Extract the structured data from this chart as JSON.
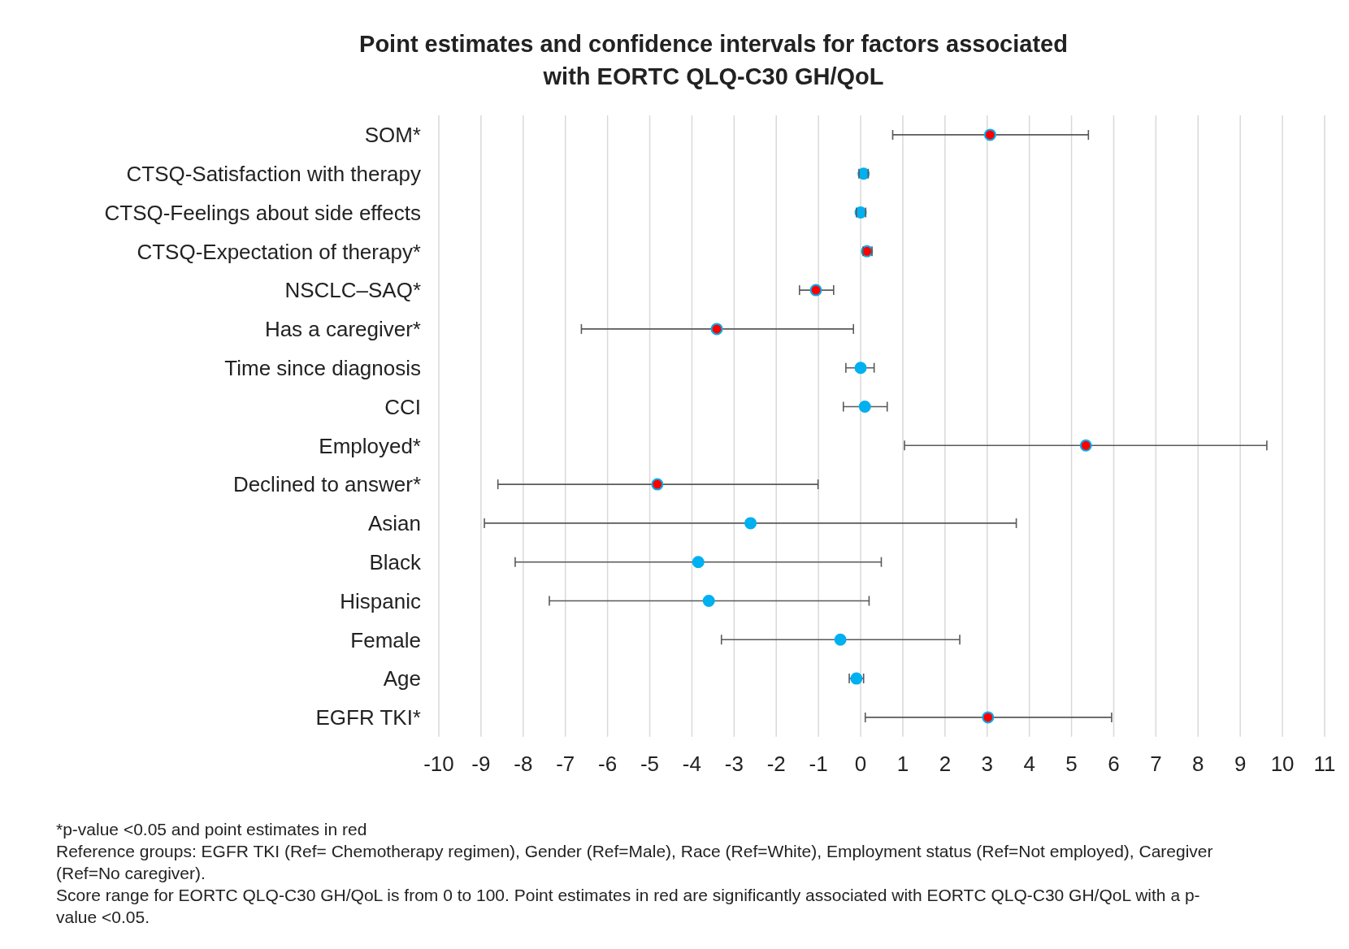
{
  "chart_data": {
    "type": "scatter",
    "title": "Point estimates and confidence intervals for factors associated with EORTC QLQ-C30 GH/QoL",
    "orientation": "horizontal",
    "categories": [
      "SOM*",
      "CTSQ-Satisfaction with therapy",
      "CTSQ-Feelings about side effects",
      "CTSQ-Expectation of therapy*",
      "NSCLC–SAQ*",
      "Has a caregiver*",
      "Time since diagnosis",
      "CCI",
      "Employed*",
      "Declined to answer*",
      "Asian",
      "Black",
      "Hispanic",
      "Female",
      "Age",
      "EGFR TKI*"
    ],
    "series": [
      {
        "color": "#00b0f0",
        "values": [
          3.07,
          0.07,
          0.0,
          0.15,
          -1.06,
          -3.41,
          0.0,
          0.1,
          5.34,
          -4.82,
          -2.61,
          -3.85,
          -3.6,
          -0.48,
          -0.1,
          3.02
        ],
        "colors": [
          "#ff0000",
          "#00b0f0",
          "#00b0f0",
          "#ff0000",
          "#ff0000",
          "#ff0000",
          "#00b0f0",
          "#00b0f0",
          "#ff0000",
          "#ff0000",
          "#00b0f0",
          "#00b0f0",
          "#00b0f0",
          "#00b0f0",
          "#00b0f0",
          "#ff0000"
        ],
        "errors": [
          [
            0.76,
            5.4
          ],
          [
            -0.04,
            0.18
          ],
          [
            -0.1,
            0.12
          ],
          [
            0.06,
            0.27
          ],
          [
            -1.45,
            -0.64
          ],
          [
            -6.62,
            -0.17
          ],
          [
            -0.35,
            0.32
          ],
          [
            -0.41,
            0.63
          ],
          [
            1.04,
            9.63
          ],
          [
            -8.6,
            -1.01
          ],
          [
            -8.92,
            3.69
          ],
          [
            -8.19,
            0.49
          ],
          [
            -7.38,
            0.2
          ],
          [
            -3.3,
            2.35
          ],
          [
            -0.27,
            0.07
          ],
          [
            0.11,
            5.95
          ]
        ]
      }
    ],
    "xlim": [
      -10,
      11
    ],
    "xticks": [
      -10,
      -9,
      -8,
      -7,
      -6,
      -5,
      -4,
      -3,
      -2,
      -1,
      0,
      1,
      2,
      3,
      4,
      5,
      6,
      7,
      8,
      9,
      10,
      11
    ],
    "grid": "x",
    "legend": false,
    "marker": "circle",
    "annotations": [
      "*p-value <0.05 and point estimates in red",
      "Reference groups: EGFR TKI (Ref= Chemotherapy regimen), Gender (Ref=Male), Race (Ref=White), Employment status (Ref=Not employed), Caregiver (Ref=No caregiver).",
      "Score range for EORTC QLQ-C30 GH/QoL is from 0 to 100. Point estimates in red are significantly associated with EORTC QLQ-C30 GH/QoL with a p-value <0.05."
    ]
  }
}
